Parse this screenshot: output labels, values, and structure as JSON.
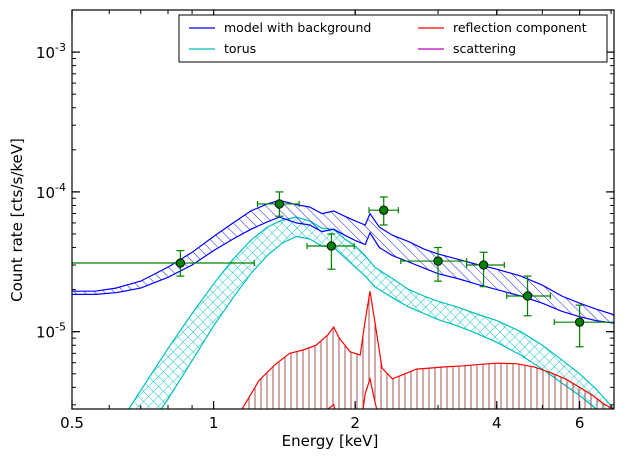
{
  "chart_data": {
    "type": "line",
    "xlabel": "Energy [keV]",
    "ylabel": "Count rate [cts/s/keV]",
    "xscale": "log",
    "yscale": "log",
    "xlim": [
      0.5,
      7.1
    ],
    "ylim": [
      2.8e-06,
      0.002
    ],
    "xticks": [
      {
        "value": 0.5,
        "label": "0.5"
      },
      {
        "value": 1,
        "label": "1"
      },
      {
        "value": 2,
        "label": "2"
      },
      {
        "value": 4,
        "label": "4"
      },
      {
        "value": 6,
        "label": "6"
      }
    ],
    "yticks": [
      {
        "value": 1e-05,
        "mant": "10",
        "exp": "-5"
      },
      {
        "value": 0.0001,
        "mant": "10",
        "exp": "-4"
      },
      {
        "value": 0.001,
        "mant": "10",
        "exp": "-3"
      }
    ],
    "legend": {
      "placement": "top-right",
      "entries": [
        {
          "label": "model with background",
          "color": "#0000ff"
        },
        {
          "label": "reflection component",
          "color": "#ff0000"
        },
        {
          "label": "torus",
          "color": "#00bfbf"
        },
        {
          "label": "scattering",
          "color": "#bf00bf"
        }
      ]
    },
    "series": [
      {
        "key": "model",
        "color": "#0000ff",
        "style": "band-hatched",
        "x": [
          0.5,
          0.56,
          0.62,
          0.7,
          0.8,
          0.9,
          1.0,
          1.1,
          1.2,
          1.3,
          1.38,
          1.5,
          1.6,
          1.7,
          1.8,
          1.9,
          2.0,
          2.1,
          2.15,
          2.25,
          2.4,
          2.6,
          2.8,
          3.0,
          3.3,
          3.6,
          4.0,
          4.5,
          5.0,
          5.5,
          6.0,
          6.5,
          7.1
        ],
        "upper": [
          1.95e-05,
          1.95e-05,
          2.05e-05,
          2.3e-05,
          2.9e-05,
          3.7e-05,
          4.8e-05,
          6e-05,
          7.3e-05,
          8.2e-05,
          8.7e-05,
          8.1e-05,
          7.8e-05,
          7e-05,
          7.3e-05,
          6.7e-05,
          6.2e-05,
          5.8e-05,
          7e-05,
          5.6e-05,
          4.9e-05,
          4.4e-05,
          3.9e-05,
          3.6e-05,
          3.3e-05,
          3.05e-05,
          2.8e-05,
          2.5e-05,
          2.15e-05,
          1.8e-05,
          1.6e-05,
          1.45e-05,
          1.32e-05
        ],
        "lower": [
          1.85e-05,
          1.85e-05,
          1.9e-05,
          2.05e-05,
          2.45e-05,
          3e-05,
          3.8e-05,
          4.6e-05,
          5.4e-05,
          6.1e-05,
          6.6e-05,
          6e-05,
          5.8e-05,
          5.2e-05,
          5.4e-05,
          4.9e-05,
          4.5e-05,
          4.2e-05,
          5.1e-05,
          4e-05,
          3.5e-05,
          3.15e-05,
          2.85e-05,
          2.6e-05,
          2.4e-05,
          2.2e-05,
          2e-05,
          1.8e-05,
          1.6e-05,
          1.4e-05,
          1.28e-05,
          1.2e-05,
          1.15e-05
        ]
      },
      {
        "key": "torus",
        "color": "#00bfbf",
        "style": "band-crosshatched",
        "x": [
          0.66,
          0.72,
          0.8,
          0.9,
          1.0,
          1.1,
          1.2,
          1.3,
          1.4,
          1.5,
          1.6,
          1.7,
          1.8,
          1.9,
          2.0,
          2.1,
          2.2,
          2.4,
          2.6,
          2.8,
          3.0,
          3.3,
          3.6,
          4.0,
          4.5,
          5.0,
          5.5,
          6.0,
          6.5,
          7.1
        ],
        "upper": [
          2.8e-06,
          4.4e-06,
          7.6e-06,
          1.35e-05,
          2.2e-05,
          3.3e-05,
          4.5e-05,
          5.6e-05,
          6.3e-05,
          6.6e-05,
          6.2e-05,
          5.5e-05,
          5.4e-05,
          4.6e-05,
          4.1e-05,
          3.5e-05,
          2.9e-05,
          2.4e-05,
          2e-05,
          1.8e-05,
          1.65e-05,
          1.5e-05,
          1.35e-05,
          1.2e-05,
          1e-05,
          8e-06,
          6.3e-06,
          5e-06,
          3.9e-06,
          2.8e-06
        ],
        "lower": [
          null,
          null,
          3.3e-06,
          6.2e-06,
          1.1e-05,
          1.75e-05,
          2.6e-05,
          3.5e-05,
          4.3e-05,
          4.8e-05,
          4.6e-05,
          4.1e-05,
          4e-05,
          3.4e-05,
          2.9e-05,
          2.5e-05,
          2.1e-05,
          1.75e-05,
          1.5e-05,
          1.35e-05,
          1.22e-05,
          1.1e-05,
          9.8e-06,
          8.4e-06,
          6.8e-06,
          5.4e-06,
          4.3e-06,
          3.5e-06,
          2.8e-06,
          null
        ]
      },
      {
        "key": "reflection",
        "color": "#ff0000",
        "style": "band-vertical-hatch",
        "x": [
          1.15,
          1.25,
          1.35,
          1.45,
          1.55,
          1.65,
          1.75,
          1.8,
          1.85,
          1.95,
          2.05,
          2.1,
          2.15,
          2.2,
          2.28,
          2.4,
          2.55,
          2.7,
          2.9,
          3.1,
          3.4,
          3.7,
          4.0,
          4.4,
          4.8,
          5.2,
          5.6,
          6.0,
          6.4,
          6.8,
          7.1
        ],
        "upper": [
          2.8e-06,
          4.5e-06,
          5.8e-06,
          7e-06,
          7.4e-06,
          8e-06,
          9.5e-06,
          1.08e-05,
          9e-06,
          7.2e-06,
          6.8e-06,
          1.2e-05,
          1.95e-05,
          1.2e-05,
          5.5e-06,
          4.6e-06,
          5e-06,
          5.4e-06,
          5.5e-06,
          5.6e-06,
          5.7e-06,
          5.85e-06,
          5.95e-06,
          5.9e-06,
          5.6e-06,
          5.1e-06,
          4.6e-06,
          4e-06,
          3.5e-06,
          3e-06,
          2.8e-06
        ],
        "lower": [
          null,
          null,
          null,
          null,
          null,
          null,
          2.8e-06,
          3e-06,
          null,
          null,
          null,
          3.6e-06,
          4.6e-06,
          3.2e-06,
          null,
          null,
          null,
          null,
          null,
          null,
          null,
          null,
          null,
          null,
          null,
          null,
          null,
          null,
          null,
          null,
          null
        ]
      }
    ],
    "data_points": {
      "color": "#008000",
      "points": [
        {
          "x": 0.85,
          "y": 3.1e-05,
          "xerr": [
            0.5,
            1.22
          ],
          "yerr": [
            2.5e-05,
            3.8e-05
          ]
        },
        {
          "x": 1.38,
          "y": 8.2e-05,
          "xerr": [
            1.24,
            1.52
          ],
          "yerr": [
            6.7e-05,
            0.0001
          ]
        },
        {
          "x": 1.78,
          "y": 4.1e-05,
          "xerr": [
            1.58,
            1.99
          ],
          "yerr": [
            2.8e-05,
            5e-05
          ]
        },
        {
          "x": 2.3,
          "y": 7.4e-05,
          "xerr": [
            2.14,
            2.47
          ],
          "yerr": [
            5.8e-05,
            9.2e-05
          ]
        },
        {
          "x": 3.0,
          "y": 3.2e-05,
          "xerr": [
            2.5,
            3.45
          ],
          "yerr": [
            2.3e-05,
            4e-05
          ]
        },
        {
          "x": 3.75,
          "y": 3e-05,
          "xerr": [
            3.45,
            4.15
          ],
          "yerr": [
            2.1e-05,
            3.7e-05
          ]
        },
        {
          "x": 4.65,
          "y": 1.8e-05,
          "xerr": [
            4.2,
            5.2
          ],
          "yerr": [
            1.3e-05,
            2.5e-05
          ]
        },
        {
          "x": 6.0,
          "y": 1.17e-05,
          "xerr": [
            5.3,
            7.1
          ],
          "yerr": [
            7.8e-06,
            1.55e-05
          ]
        }
      ]
    }
  }
}
